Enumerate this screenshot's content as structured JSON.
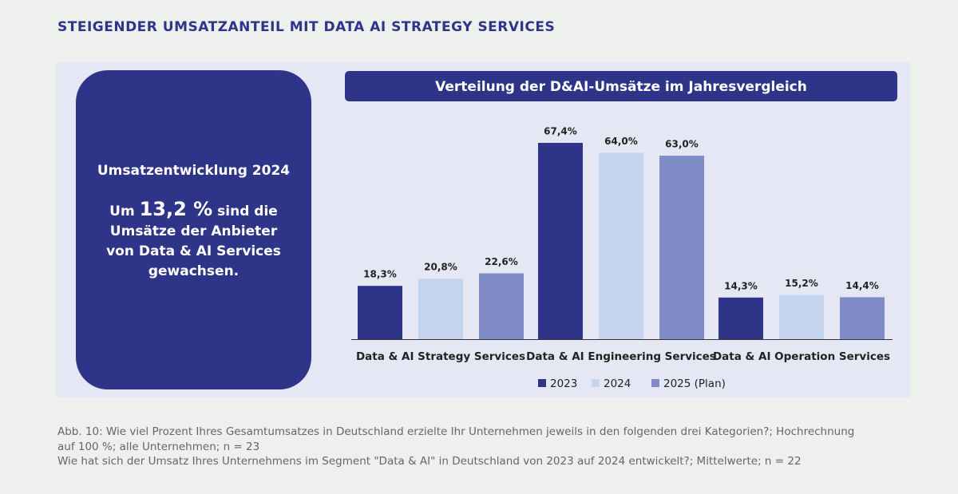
{
  "header": {
    "title": "STEIGENDER UMSATZANTEIL MIT DATA AI STRATEGY SERVICES"
  },
  "kpi": {
    "heading": "Umsatzentwicklung 2024",
    "prefix": "Um",
    "figure": "13,2 %",
    "text": "sind die Umsätze der Anbieter von Data & AI Services gewachsen."
  },
  "chart_data": {
    "type": "bar",
    "title": "Verteilung der D&AI-Umsätze im Jahresvergleich",
    "categories": [
      "Data & AI Strategy Services",
      "Data & AI Engineering Services",
      "Data & AI Operation Services"
    ],
    "series": [
      {
        "name": "2023",
        "color": "#2e3589",
        "values": [
          18.3,
          67.4,
          14.3
        ],
        "value_labels": [
          "18,3%",
          "67,4%",
          "14,3%"
        ]
      },
      {
        "name": "2024",
        "color": "#c5d5f0",
        "values": [
          20.8,
          64.0,
          15.2
        ],
        "value_labels": [
          "20,8%",
          "64,0%",
          "15,2%"
        ]
      },
      {
        "name": "2025 (Plan)",
        "color": "#7f8cc8",
        "values": [
          22.6,
          63.0,
          14.4
        ],
        "value_labels": [
          "22,6%",
          "63,0%",
          "14,4%"
        ]
      }
    ],
    "legend": "bottom"
  },
  "footnote": {
    "lines": [
      "Abb. 10: Wie viel Prozent Ihres Gesamtumsatzes in Deutschland erzielte Ihr Unternehmen jeweils in den folgenden drei Kategorien?; Hochrechnung auf 100 %; alle Unternehmen; n = 23",
      "Wie hat sich der Umsatz Ihres Unternehmens im Segment \"Data & AI\" in Deutschland von 2023 auf 2024 entwickelt?; Mittelwerte; n = 22"
    ]
  }
}
